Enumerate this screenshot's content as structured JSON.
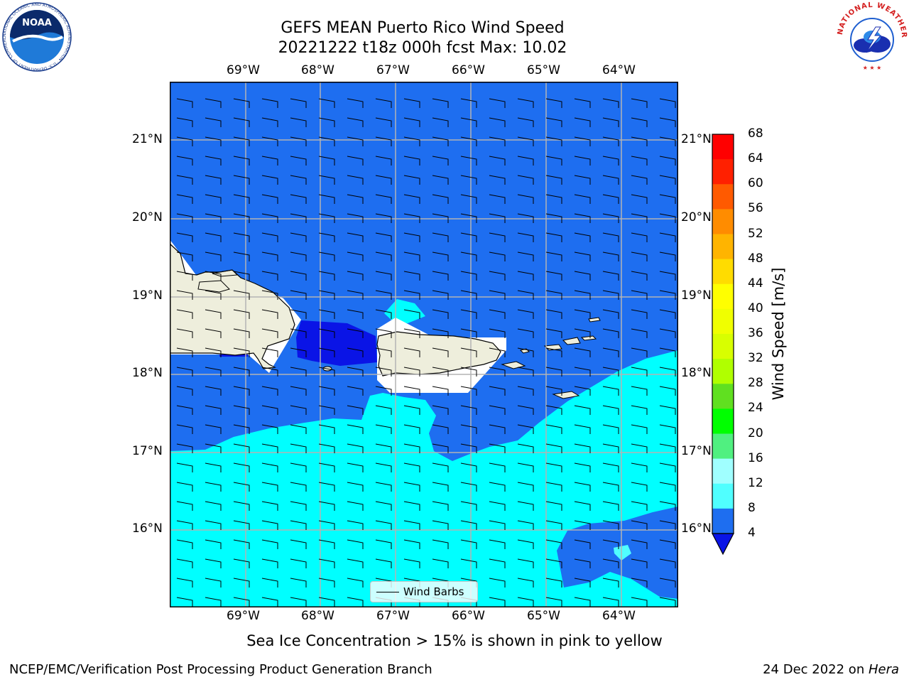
{
  "header": {
    "title_line1": "GEFS MEAN Puerto Rico Wind Speed",
    "title_line2": "20221222 t18z 000h fcst   Max: 10.02"
  },
  "map": {
    "lon_ticks": [
      "69°W",
      "68°W",
      "67°W",
      "66°W",
      "65°W",
      "64°W"
    ],
    "lat_ticks": [
      "21°N",
      "20°N",
      "19°N",
      "18°N",
      "17°N",
      "16°N"
    ],
    "legend_label": "Wind Barbs",
    "colors": {
      "ocean_low": "#1e6ef0",
      "ocean_high": "#00ffff",
      "calm": "#0a14e6",
      "land": "#eeeedc",
      "grid": "#b4b4b4"
    }
  },
  "colorbar": {
    "label": "Wind Speed [m/s]",
    "unit": "m/s",
    "ticks": [
      "68",
      "64",
      "60",
      "56",
      "52",
      "48",
      "44",
      "40",
      "36",
      "32",
      "28",
      "24",
      "20",
      "16",
      "12",
      "8",
      "4"
    ],
    "colors": [
      "#ff0000",
      "#ff2000",
      "#ff5a00",
      "#ff8c00",
      "#ffb400",
      "#ffdc00",
      "#ffff00",
      "#f0ff00",
      "#d8ff00",
      "#b0ff00",
      "#60e020",
      "#00ff00",
      "#50f080",
      "#a0ffff",
      "#50ffff",
      "#00ffff",
      "#1e6ef0"
    ]
  },
  "note": "Sea Ice Concentration > 15% is shown in pink to yellow",
  "footer": {
    "left": "NCEP/EMC/Verification Post Processing Product Generation Branch",
    "date": "24 Dec 2022 on ",
    "host": "Hera"
  },
  "logos": {
    "noaa": "NOAA",
    "noaa_ring": "NATIONAL OCEANIC AND ATMOSPHERIC ADMINISTRATION · U.S. DEPARTMENT OF COMMERCE",
    "nws_ring": "NATIONAL WEATHER SERVICE"
  }
}
